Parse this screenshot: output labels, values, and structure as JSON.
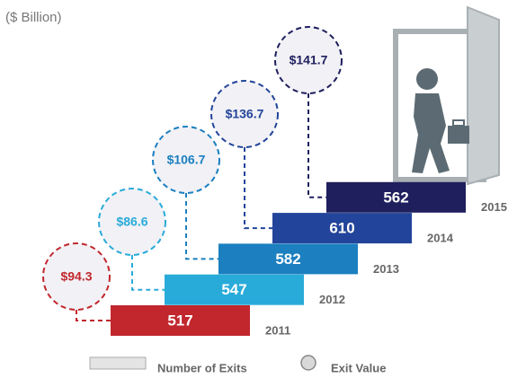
{
  "chart_data": {
    "type": "staircase",
    "unit_label": "($ Billion)",
    "categories": [
      "2011",
      "2012",
      "2013",
      "2014",
      "2015"
    ],
    "series": [
      {
        "name": "Number of Exits",
        "values": [
          517,
          547,
          582,
          610,
          562
        ],
        "colors": [
          "#c1272d",
          "#29abd9",
          "#1b7fc0",
          "#22449a",
          "#1f1f5e"
        ]
      },
      {
        "name": "Exit Value",
        "values": [
          94.3,
          86.6,
          106.7,
          136.7,
          141.7
        ],
        "value_labels": [
          "$94.3",
          "$86.6",
          "$106.7",
          "$136.7",
          "$141.7"
        ],
        "colors": [
          "#c1272d",
          "#29abd9",
          "#1b7fc0",
          "#22449a",
          "#1f1f5e"
        ]
      }
    ]
  }
}
